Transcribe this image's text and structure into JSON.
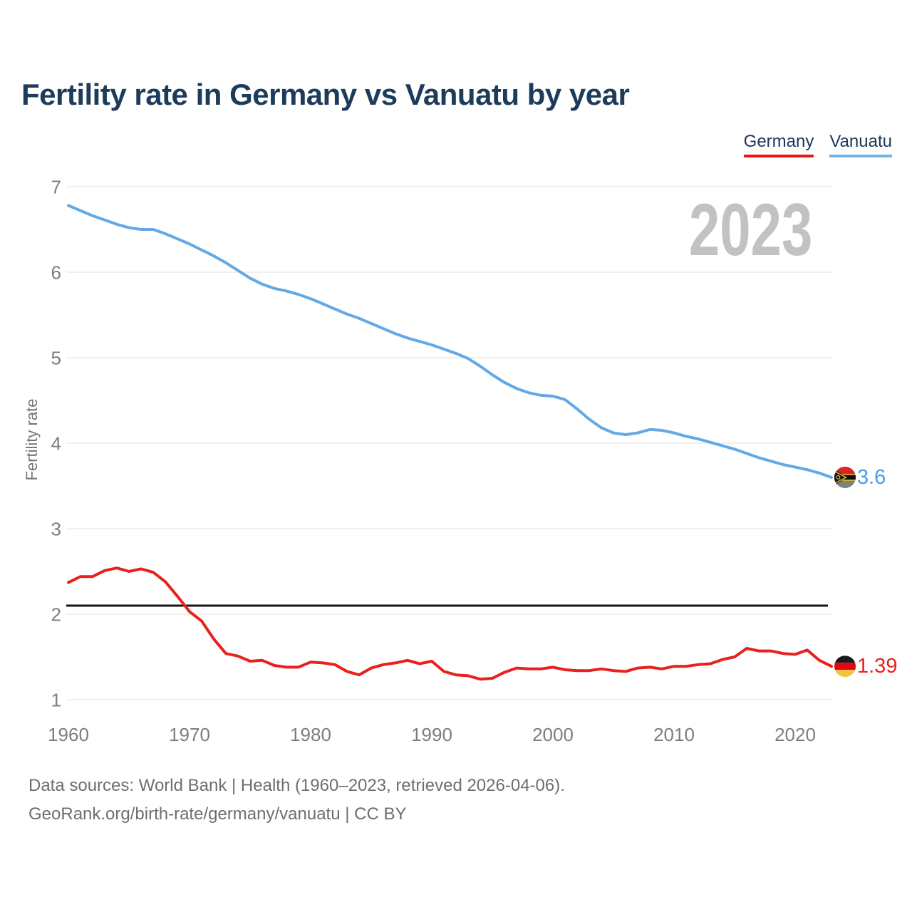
{
  "page_title": "Fertility rate in Germany vs Vanuatu by year",
  "legend": {
    "items": [
      {
        "label": "Germany",
        "color": "#ee1414"
      },
      {
        "label": "Vanuatu",
        "color": "#6fb2e8"
      }
    ]
  },
  "watermark": "2023",
  "y_axis": {
    "label": "Fertility rate",
    "ticks": [
      7,
      6,
      5,
      4,
      3,
      2,
      1
    ],
    "min": 1,
    "max": 7
  },
  "x_axis": {
    "ticks": [
      1960,
      1970,
      1980,
      1990,
      2000,
      2010,
      2020
    ],
    "min": 1960,
    "max": 2023
  },
  "reference_line": {
    "value": 2.1,
    "color": "#141414"
  },
  "end_labels": [
    {
      "series": "Vanuatu",
      "value": "3.6",
      "color": "#479ee8",
      "icon": "vanuatu-flag-icon"
    },
    {
      "series": "Germany",
      "value": "1.39",
      "color": "#e8211d",
      "icon": "germany-flag-icon"
    }
  ],
  "footer": {
    "line1": "Data sources: World Bank | Health (1960–2023, retrieved 2026-04-06).",
    "line2": "GeoRank.org/birth-rate/germany/vanuatu | CC BY"
  },
  "chart_data": {
    "type": "line",
    "title": "Fertility rate in Germany vs Vanuatu by year",
    "ylabel": "Fertility rate",
    "ylim": [
      1,
      7
    ],
    "grid": "horizontal",
    "legend_position": "top-right",
    "reference_line_y": 2.1,
    "x": [
      1960,
      1961,
      1962,
      1963,
      1964,
      1965,
      1966,
      1967,
      1968,
      1969,
      1970,
      1971,
      1972,
      1973,
      1974,
      1975,
      1976,
      1977,
      1978,
      1979,
      1980,
      1981,
      1982,
      1983,
      1984,
      1985,
      1986,
      1987,
      1988,
      1989,
      1990,
      1991,
      1992,
      1993,
      1994,
      1995,
      1996,
      1997,
      1998,
      1999,
      2000,
      2001,
      2002,
      2003,
      2004,
      2005,
      2006,
      2007,
      2008,
      2009,
      2010,
      2011,
      2012,
      2013,
      2014,
      2015,
      2016,
      2017,
      2018,
      2019,
      2020,
      2021,
      2022,
      2023
    ],
    "series": [
      {
        "name": "Germany",
        "color": "#e8211d",
        "values": [
          2.37,
          2.44,
          2.44,
          2.51,
          2.54,
          2.5,
          2.53,
          2.49,
          2.38,
          2.21,
          2.03,
          1.92,
          1.71,
          1.54,
          1.51,
          1.45,
          1.46,
          1.4,
          1.38,
          1.38,
          1.44,
          1.43,
          1.41,
          1.33,
          1.29,
          1.37,
          1.41,
          1.43,
          1.46,
          1.42,
          1.45,
          1.33,
          1.29,
          1.28,
          1.24,
          1.25,
          1.32,
          1.37,
          1.36,
          1.36,
          1.38,
          1.35,
          1.34,
          1.34,
          1.36,
          1.34,
          1.33,
          1.37,
          1.38,
          1.36,
          1.39,
          1.39,
          1.41,
          1.42,
          1.47,
          1.5,
          1.6,
          1.57,
          1.57,
          1.54,
          1.53,
          1.58,
          1.46,
          1.39
        ]
      },
      {
        "name": "Vanuatu",
        "color": "#64a9e6",
        "values": [
          6.78,
          6.72,
          6.66,
          6.61,
          6.56,
          6.52,
          6.5,
          6.5,
          6.45,
          6.39,
          6.33,
          6.26,
          6.19,
          6.11,
          6.02,
          5.93,
          5.86,
          5.81,
          5.78,
          5.74,
          5.69,
          5.63,
          5.57,
          5.51,
          5.46,
          5.4,
          5.34,
          5.28,
          5.23,
          5.19,
          5.15,
          5.1,
          5.05,
          4.99,
          4.9,
          4.8,
          4.71,
          4.64,
          4.59,
          4.56,
          4.55,
          4.51,
          4.4,
          4.28,
          4.18,
          4.12,
          4.1,
          4.12,
          4.16,
          4.15,
          4.12,
          4.08,
          4.05,
          4.01,
          3.97,
          3.93,
          3.88,
          3.83,
          3.79,
          3.75,
          3.72,
          3.69,
          3.65,
          3.6
        ]
      }
    ]
  }
}
